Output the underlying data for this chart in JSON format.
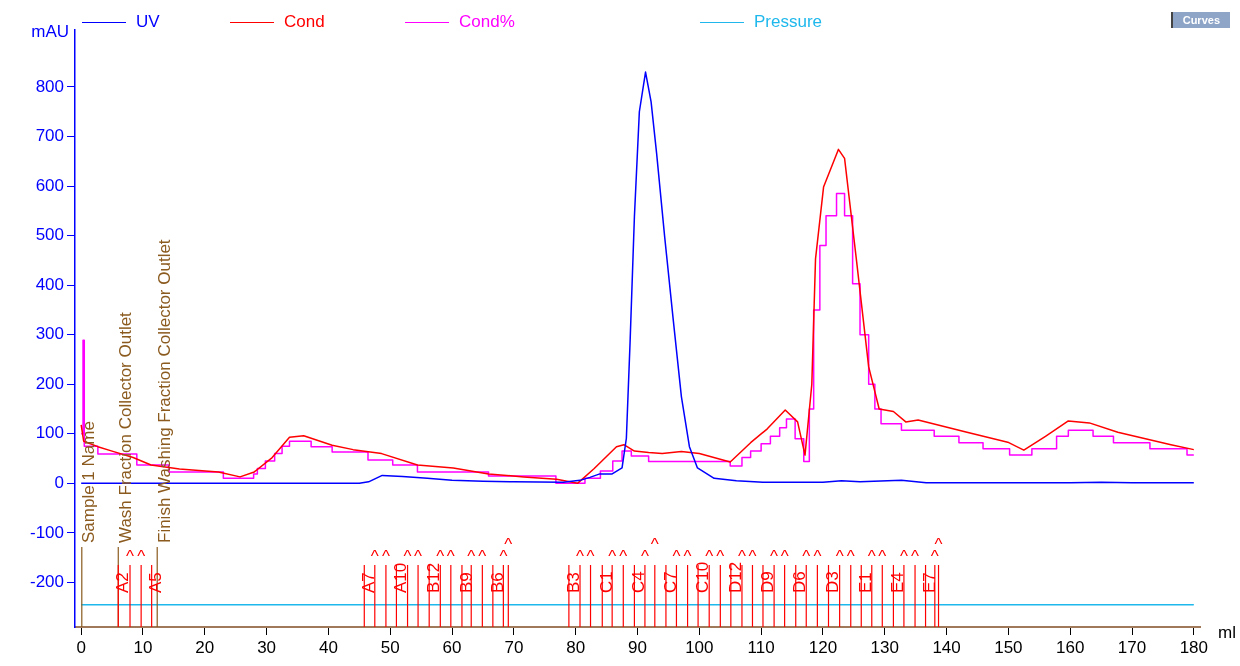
{
  "chart_data": {
    "type": "line",
    "xlabel": "ml",
    "ylabel": "mAU",
    "xlim": [
      -1,
      181
    ],
    "ylim": [
      -290,
      915
    ],
    "xticks": [
      0,
      10,
      20,
      30,
      40,
      50,
      60,
      70,
      80,
      90,
      100,
      110,
      120,
      130,
      140,
      150,
      160,
      170,
      180
    ],
    "yticks": [
      -200,
      -100,
      0,
      100,
      200,
      300,
      400,
      500,
      600,
      700,
      800
    ],
    "grid": false,
    "legend": "top",
    "marker": "none",
    "line_style": "solid",
    "annotations": [
      "Curves"
    ],
    "series": [
      {
        "name": "UV",
        "color": "#0000ff",
        "x": [
          0,
          45,
          46.5,
          48.7,
          52,
          56,
          60,
          65,
          70,
          78,
          80.7,
          82.3,
          83.9,
          85.9,
          87.5,
          88.2,
          88.8,
          89.5,
          90.3,
          91.3,
          92.2,
          93.1,
          94.4,
          95.8,
          97.1,
          98.4,
          99.7,
          102.4,
          106,
          110.3,
          120,
          123,
          126,
          132.7,
          136.7,
          160,
          165,
          170,
          180
        ],
        "values": [
          0,
          0,
          3,
          16,
          14,
          10,
          6,
          4,
          3,
          2,
          6,
          12,
          19,
          19,
          31,
          91,
          285,
          538,
          750,
          830,
          770,
          665,
          497,
          328,
          175,
          74,
          31,
          10,
          5,
          2,
          2,
          5,
          3,
          6,
          1,
          1,
          2,
          1,
          1
        ]
      },
      {
        "name": "Cond",
        "color": "#ff0000",
        "x": [
          0,
          0.4,
          2.7,
          5,
          8.4,
          11.3,
          15.9,
          22.2,
          25.7,
          28,
          30.9,
          33.7,
          36,
          40.6,
          44,
          48.6,
          54.4,
          60.2,
          65.9,
          71.6,
          76.9,
          80.3,
          83,
          86.6,
          87.8,
          89.5,
          91.8,
          94,
          97.1,
          100,
          105,
          108.3,
          111,
          113.9,
          115.9,
          117.1,
          118.2,
          118.8,
          120.1,
          122.5,
          123.5,
          125.4,
          127.4,
          129.1,
          131.4,
          133.4,
          135.4,
          143.3,
          149.9,
          152.5,
          156,
          159.7,
          163.1,
          167.7,
          176.3,
          180
        ],
        "values": [
          118,
          85,
          74,
          65,
          52,
          37,
          29,
          23,
          13,
          23,
          52,
          93,
          96,
          77,
          68,
          60,
          37,
          31,
          19,
          13,
          8,
          0,
          30,
          74,
          78,
          65,
          62,
          60,
          64,
          60,
          43,
          82,
          110,
          148,
          124,
          57,
          200,
          453,
          598,
          674,
          656,
          453,
          235,
          150,
          145,
          124,
          128,
          103,
          83,
          67,
          95,
          126,
          122,
          103,
          78,
          68
        ]
      },
      {
        "name": "Cond%",
        "color": "#ff00ff",
        "type": "step",
        "x": [
          0,
          0.3,
          0.5,
          2.7,
          9,
          14.2,
          23,
          27.9,
          28.5,
          29.8,
          31.3,
          32.5,
          33.7,
          37.2,
          40.6,
          46.4,
          50.4,
          54.4,
          65.9,
          76.8,
          81.5,
          84,
          86,
          87.5,
          89,
          91.8,
          105,
          106.9,
          108.3,
          110,
          111.5,
          113,
          114.1,
          115.5,
          116.9,
          117.8,
          118.5,
          119.5,
          120.5,
          122.2,
          123.5,
          124.8,
          126,
          127.4,
          128.4,
          129.4,
          132.7,
          138,
          142,
          145.9,
          150.2,
          153.8,
          157.8,
          159.7,
          163.7,
          167,
          172.9,
          178.9,
          180
        ],
        "values": [
          100,
          289,
          75,
          59,
          37,
          23,
          10,
          19,
          30,
          45,
          60,
          75,
          85,
          74,
          63,
          47,
          37,
          23,
          15,
          0,
          10,
          25,
          45,
          65,
          55,
          44,
          35,
          52,
          65,
          80,
          95,
          112,
          130,
          90,
          44,
          150,
          350,
          480,
          540,
          585,
          540,
          403,
          300,
          200,
          150,
          120,
          107,
          95,
          82,
          70,
          57,
          70,
          95,
          107,
          95,
          82,
          70,
          57,
          57
        ]
      },
      {
        "name": "Pressure",
        "color": "#1fb8ec",
        "x": [
          0,
          180
        ],
        "values": [
          -245,
          -245
        ]
      }
    ],
    "ref_lines": [
      {
        "axis": "x",
        "value": 0.1,
        "label": "Sample 1 Name",
        "color": "#8b5a1e"
      },
      {
        "axis": "x",
        "value": 6.0,
        "label": "Wash Fraction Collector Outlet",
        "color": "#8b5a1e"
      },
      {
        "axis": "x",
        "value": 12.3,
        "label": "Finish Washing Fraction Collector Outlet",
        "color": "#8b5a1e"
      },
      {
        "axis": "x",
        "value": 6.0,
        "label": "A2",
        "color": "#ff0000"
      },
      {
        "axis": "x",
        "value": 7.9,
        "label": "^",
        "color": "#ff0000"
      },
      {
        "axis": "x",
        "value": 9.7,
        "label": "^",
        "color": "#ff0000"
      },
      {
        "axis": "x",
        "value": 11.4,
        "label": "A5",
        "color": "#ff0000"
      },
      {
        "axis": "x",
        "value": 45.8,
        "label": "A7",
        "color": "#ff0000"
      },
      {
        "axis": "x",
        "value": 47.5,
        "label": "^",
        "color": "#ff0000"
      },
      {
        "axis": "x",
        "value": 49.3,
        "label": "^",
        "color": "#ff0000"
      },
      {
        "axis": "x",
        "value": 51.0,
        "label": "A10",
        "color": "#ff0000"
      },
      {
        "axis": "x",
        "value": 52.8,
        "label": "^",
        "color": "#ff0000"
      },
      {
        "axis": "x",
        "value": 54.5,
        "label": "^",
        "color": "#ff0000"
      },
      {
        "axis": "x",
        "value": 56.3,
        "label": "B12",
        "color": "#ff0000"
      },
      {
        "axis": "x",
        "value": 58.1,
        "label": "^",
        "color": "#ff0000"
      },
      {
        "axis": "x",
        "value": 59.8,
        "label": "^",
        "color": "#ff0000"
      },
      {
        "axis": "x",
        "value": 61.6,
        "label": "B9",
        "color": "#ff0000"
      },
      {
        "axis": "x",
        "value": 63.1,
        "label": "^",
        "color": "#ff0000"
      },
      {
        "axis": "x",
        "value": 64.9,
        "label": "^",
        "color": "#ff0000"
      },
      {
        "axis": "x",
        "value": 66.6,
        "label": "B6",
        "color": "#ff0000"
      },
      {
        "axis": "x",
        "value": 68.3,
        "label": "^",
        "color": "#ff0000"
      },
      {
        "axis": "x",
        "value": 69.1,
        "label": "^",
        "color": "#ff0000"
      },
      {
        "axis": "x",
        "value": 78.9,
        "label": "B3",
        "color": "#ff0000"
      },
      {
        "axis": "x",
        "value": 80.7,
        "label": "^",
        "color": "#ff0000"
      },
      {
        "axis": "x",
        "value": 82.4,
        "label": "^",
        "color": "#ff0000"
      },
      {
        "axis": "x",
        "value": 84.3,
        "label": "C1",
        "color": "#ff0000"
      },
      {
        "axis": "x",
        "value": 85.9,
        "label": "^",
        "color": "#ff0000"
      },
      {
        "axis": "x",
        "value": 87.7,
        "label": "^",
        "color": "#ff0000"
      },
      {
        "axis": "x",
        "value": 89.5,
        "label": "C4",
        "color": "#ff0000"
      },
      {
        "axis": "x",
        "value": 91.2,
        "label": "^",
        "color": "#ff0000"
      },
      {
        "axis": "x",
        "value": 92.8,
        "label": "^",
        "color": "#ff0000"
      },
      {
        "axis": "x",
        "value": 94.6,
        "label": "C7",
        "color": "#ff0000"
      },
      {
        "axis": "x",
        "value": 96.3,
        "label": "^",
        "color": "#ff0000"
      },
      {
        "axis": "x",
        "value": 98.1,
        "label": "^",
        "color": "#ff0000"
      },
      {
        "axis": "x",
        "value": 99.8,
        "label": "C10",
        "color": "#ff0000"
      },
      {
        "axis": "x",
        "value": 101.6,
        "label": "^",
        "color": "#ff0000"
      },
      {
        "axis": "x",
        "value": 103.4,
        "label": "^",
        "color": "#ff0000"
      },
      {
        "axis": "x",
        "value": 105.1,
        "label": "D12",
        "color": "#ff0000"
      },
      {
        "axis": "x",
        "value": 106.9,
        "label": "^",
        "color": "#ff0000"
      },
      {
        "axis": "x",
        "value": 108.6,
        "label": "^",
        "color": "#ff0000"
      },
      {
        "axis": "x",
        "value": 110.3,
        "label": "D9",
        "color": "#ff0000"
      },
      {
        "axis": "x",
        "value": 112.1,
        "label": "^",
        "color": "#ff0000"
      },
      {
        "axis": "x",
        "value": 113.8,
        "label": "^",
        "color": "#ff0000"
      },
      {
        "axis": "x",
        "value": 115.6,
        "label": "D6",
        "color": "#ff0000"
      },
      {
        "axis": "x",
        "value": 117.3,
        "label": "^",
        "color": "#ff0000"
      },
      {
        "axis": "x",
        "value": 119.1,
        "label": "^",
        "color": "#ff0000"
      },
      {
        "axis": "x",
        "value": 120.9,
        "label": "D3",
        "color": "#ff0000"
      },
      {
        "axis": "x",
        "value": 122.7,
        "label": "^",
        "color": "#ff0000"
      },
      {
        "axis": "x",
        "value": 124.5,
        "label": "^",
        "color": "#ff0000"
      },
      {
        "axis": "x",
        "value": 126.2,
        "label": "E1",
        "color": "#ff0000"
      },
      {
        "axis": "x",
        "value": 127.9,
        "label": "^",
        "color": "#ff0000"
      },
      {
        "axis": "x",
        "value": 129.6,
        "label": "^",
        "color": "#ff0000"
      },
      {
        "axis": "x",
        "value": 131.4,
        "label": "E4",
        "color": "#ff0000"
      },
      {
        "axis": "x",
        "value": 133.1,
        "label": "^",
        "color": "#ff0000"
      },
      {
        "axis": "x",
        "value": 134.9,
        "label": "^",
        "color": "#ff0000"
      },
      {
        "axis": "x",
        "value": 136.6,
        "label": "E7",
        "color": "#ff0000"
      },
      {
        "axis": "x",
        "value": 138.1,
        "label": "^",
        "color": "#ff0000"
      },
      {
        "axis": "x",
        "value": 138.7,
        "label": "^",
        "color": "#ff0000"
      }
    ]
  }
}
